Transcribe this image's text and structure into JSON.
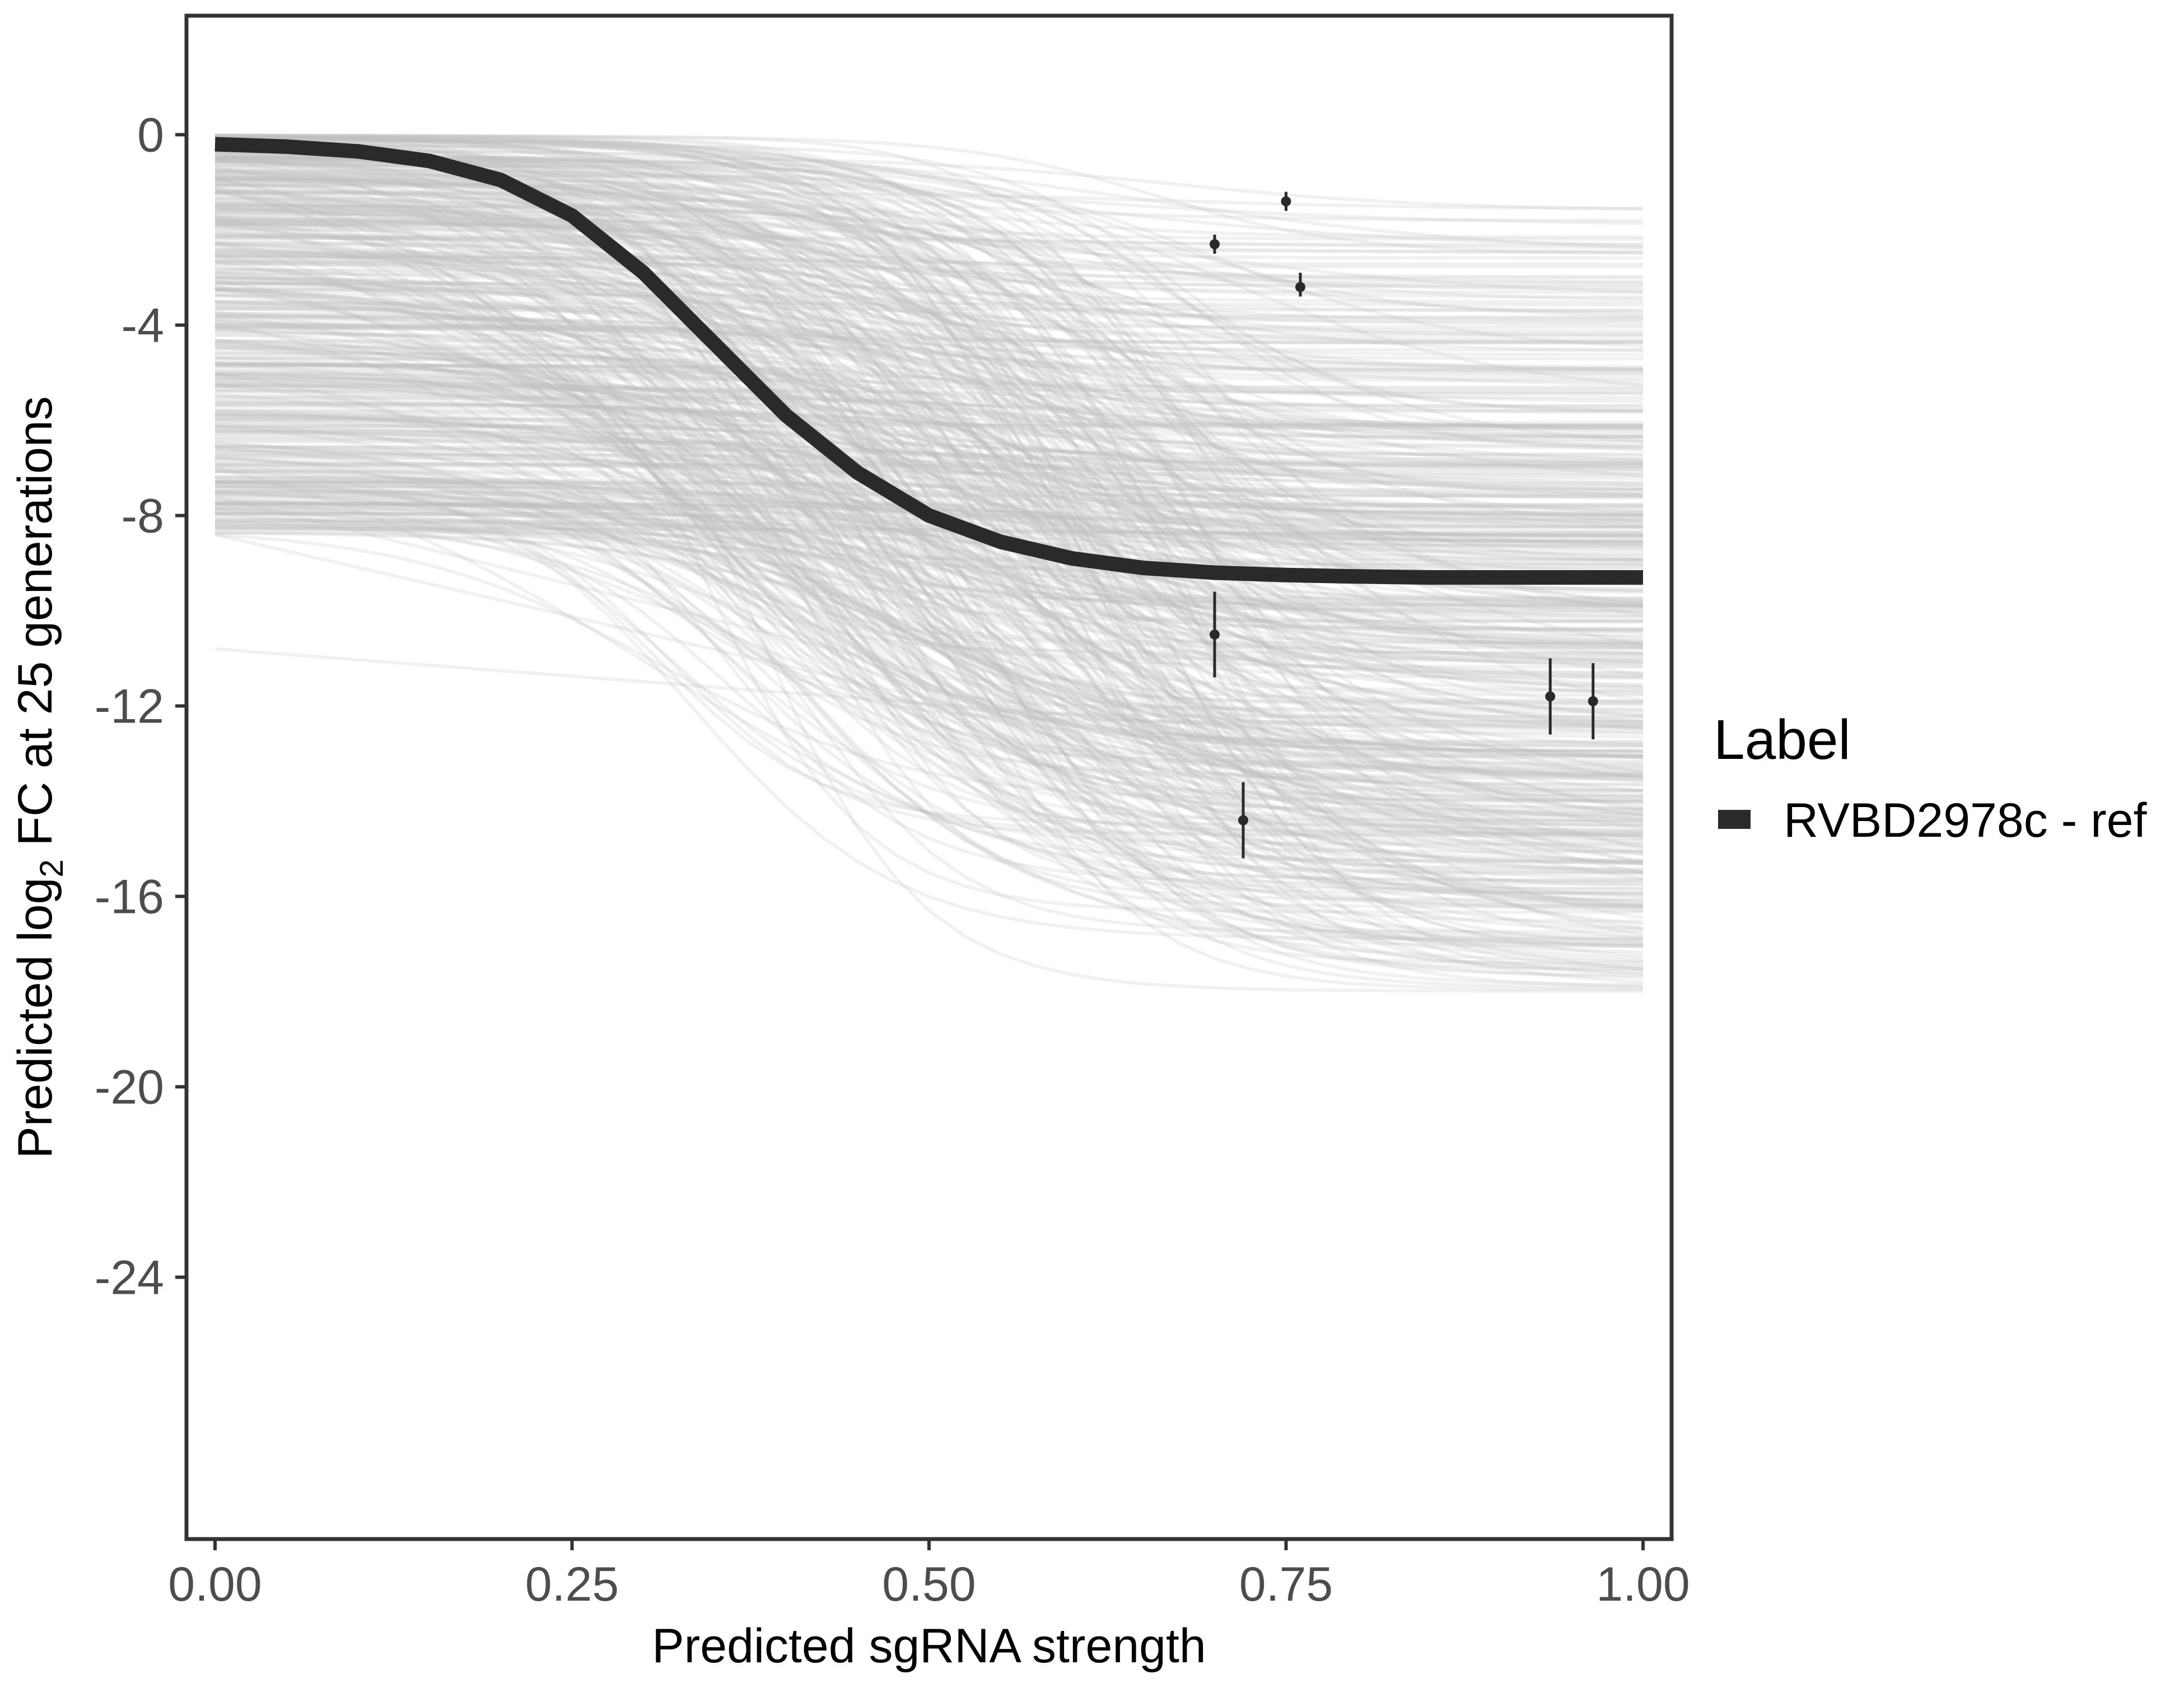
{
  "chart_data": {
    "type": "line",
    "title": "",
    "xlabel": "Predicted sgRNA strength",
    "ylabel_prefix": "Predicted  log",
    "ylabel_sub": "2",
    "ylabel_suffix": " FC at 25 generations",
    "xlim": [
      -0.02,
      1.02
    ],
    "ylim": [
      -29.5,
      2.5
    ],
    "x_ticks": [
      0,
      0.25,
      0.5,
      0.75,
      1
    ],
    "x_tick_labels": [
      "0.00",
      "0.25",
      "0.50",
      "0.75",
      "1.00"
    ],
    "y_ticks": [
      0,
      -4,
      -8,
      -12,
      -16,
      -20,
      -24
    ],
    "y_tick_labels": [
      "0",
      "-4",
      "-8",
      "-12",
      "-16",
      "-20",
      "-24"
    ],
    "grid": false,
    "legend": {
      "title": "Label",
      "position": "right",
      "entries": [
        {
          "name": "RVBD2978c - ref",
          "color": "#2a2a2a"
        }
      ]
    },
    "fit_curve": {
      "name": "RVBD2978c - ref",
      "color": "#2a2a2a",
      "x": [
        0.0,
        0.05,
        0.1,
        0.15,
        0.2,
        0.25,
        0.3,
        0.35,
        0.4,
        0.45,
        0.5,
        0.55,
        0.6,
        0.65,
        0.7,
        0.75,
        0.8,
        0.85,
        0.9,
        0.95,
        1.0
      ],
      "y": [
        -0.2,
        -0.25,
        -0.35,
        -0.55,
        -0.95,
        -1.7,
        -2.9,
        -4.4,
        -5.9,
        -7.1,
        -8.0,
        -8.55,
        -8.9,
        -9.1,
        -9.2,
        -9.25,
        -9.28,
        -9.3,
        -9.3,
        -9.3,
        -9.3
      ]
    },
    "posterior_band": {
      "color": "#bdbdbd",
      "count": 520,
      "y_start_range": [
        0.0,
        -8.4
      ],
      "y_end_range": [
        -1.5,
        -18.0
      ],
      "midpoint_range": [
        0.3,
        0.7
      ]
    },
    "points": [
      {
        "x": 0.7,
        "y": -2.3,
        "ymin": -2.5,
        "ymax": -2.1
      },
      {
        "x": 0.75,
        "y": -1.4,
        "ymin": -1.6,
        "ymax": -1.2
      },
      {
        "x": 0.76,
        "y": -3.2,
        "ymin": -3.4,
        "ymax": -2.9
      },
      {
        "x": 0.7,
        "y": -10.5,
        "ymin": -11.4,
        "ymax": -9.6
      },
      {
        "x": 0.72,
        "y": -14.4,
        "ymin": -15.2,
        "ymax": -13.6
      },
      {
        "x": 0.935,
        "y": -11.8,
        "ymin": -12.6,
        "ymax": -11.0
      },
      {
        "x": 0.965,
        "y": -11.9,
        "ymin": -12.7,
        "ymax": -11.1
      }
    ]
  }
}
